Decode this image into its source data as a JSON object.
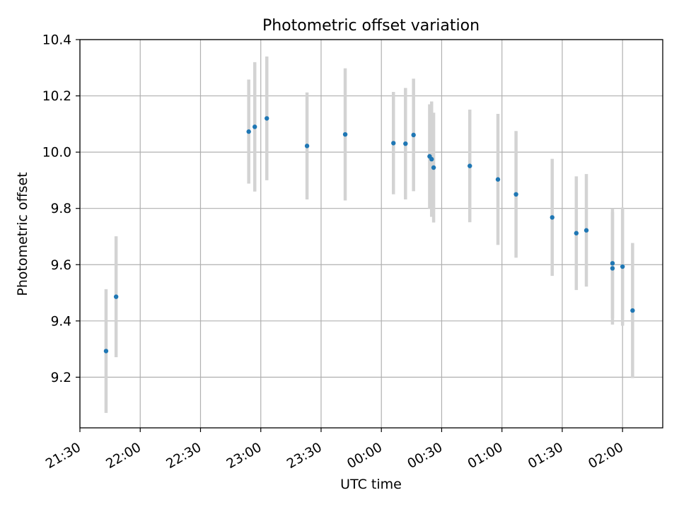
{
  "chart_data": {
    "type": "scatter",
    "title": "Photometric offset variation",
    "xlabel": "UTC time",
    "ylabel": "Photometric offset",
    "x_scale": "time",
    "xlim": [
      "21:30",
      "02:20"
    ],
    "ylim": [
      9.02,
      10.4
    ],
    "grid": true,
    "xticks": [
      "21:30",
      "22:00",
      "22:30",
      "23:00",
      "23:30",
      "00:00",
      "00:30",
      "01:00",
      "01:30",
      "02:00"
    ],
    "yticks": [
      "9.2",
      "9.4",
      "9.6",
      "9.8",
      "10.0",
      "10.2",
      "10.4"
    ],
    "marker_color": "#1f77b4",
    "errorbar_color": "#d3d3d3",
    "points": [
      {
        "time": "21:43",
        "y": 9.293,
        "err": 0.22
      },
      {
        "time": "21:48",
        "y": 9.486,
        "err": 0.215
      },
      {
        "time": "22:54",
        "y": 10.073,
        "err": 0.185
      },
      {
        "time": "22:57",
        "y": 10.09,
        "err": 0.23
      },
      {
        "time": "23:03",
        "y": 10.12,
        "err": 0.22
      },
      {
        "time": "23:23",
        "y": 10.022,
        "err": 0.19
      },
      {
        "time": "23:42",
        "y": 10.063,
        "err": 0.235
      },
      {
        "time": "00:06",
        "y": 10.032,
        "err": 0.182
      },
      {
        "time": "00:12",
        "y": 10.03,
        "err": 0.198
      },
      {
        "time": "00:16",
        "y": 10.061,
        "err": 0.2
      },
      {
        "time": "00:24",
        "y": 9.985,
        "err": 0.185
      },
      {
        "time": "00:25",
        "y": 9.975,
        "err": 0.205
      },
      {
        "time": "00:26",
        "y": 9.945,
        "err": 0.195
      },
      {
        "time": "00:44",
        "y": 9.951,
        "err": 0.2
      },
      {
        "time": "00:58",
        "y": 9.903,
        "err": 0.233
      },
      {
        "time": "01:07",
        "y": 9.85,
        "err": 0.225
      },
      {
        "time": "01:25",
        "y": 9.768,
        "err": 0.208
      },
      {
        "time": "01:37",
        "y": 9.712,
        "err": 0.202
      },
      {
        "time": "01:42",
        "y": 9.722,
        "err": 0.2
      },
      {
        "time": "01:55",
        "y": 9.587,
        "err": 0.2
      },
      {
        "time": "01:55",
        "y": 9.605,
        "err": 0.195
      },
      {
        "time": "02:00",
        "y": 9.593,
        "err": 0.21
      },
      {
        "time": "02:05",
        "y": 9.437,
        "err": 0.24
      }
    ]
  }
}
